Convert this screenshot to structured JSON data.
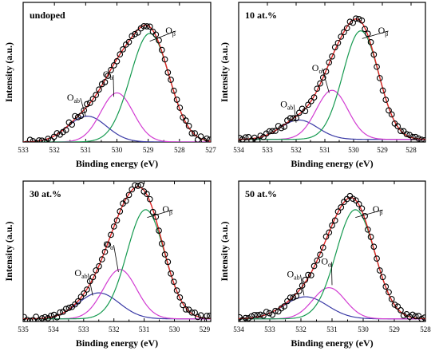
{
  "chart_data": [
    {
      "type": "line",
      "title": "undoped",
      "xlabel": "Binding energy (eV)",
      "ylabel": "Intensity (a.u.)",
      "xlim": [
        533,
        527
      ],
      "ylim": [
        0,
        1.08
      ],
      "xticks": [
        "533",
        "532",
        "531",
        "530",
        "529",
        "528",
        "527"
      ],
      "series": [
        {
          "name": "O_ab",
          "color": "#3a3aa6",
          "center": 530.95,
          "amplitude": 0.2,
          "sigma": 0.62
        },
        {
          "name": "O_α",
          "color": "#d23cd2",
          "center": 530.0,
          "amplitude": 0.38,
          "sigma": 0.52
        },
        {
          "name": "O_β",
          "color": "#169a50",
          "center": 528.95,
          "amplitude": 0.84,
          "sigma": 0.62
        }
      ],
      "fit": {
        "color": "#e02525"
      },
      "annotations": [
        {
          "main": "O",
          "sub": "ab",
          "energy": 531.6,
          "level": 0.32,
          "energy2": 531.0,
          "level2": 0.2
        },
        {
          "main": "O",
          "sub": "α",
          "energy": 530.45,
          "level": 0.5,
          "energy2": 530.1,
          "level2": 0.35
        },
        {
          "main": "O",
          "sub": "β",
          "energy": 528.45,
          "level": 0.84,
          "energy2": 528.95,
          "level2": 0.78
        }
      ],
      "background": 0.0
    },
    {
      "type": "line",
      "title": "10 at.%",
      "xlabel": "Binding energy (eV)",
      "ylabel": "Intensity (a.u.)",
      "xlim": [
        534,
        527.5
      ],
      "ylim": [
        0,
        1.08
      ],
      "xticks": [
        "534",
        "533",
        "532",
        "531",
        "530",
        "529",
        "528"
      ],
      "series": [
        {
          "name": "O_ab",
          "color": "#3a3aa6",
          "center": 531.9,
          "amplitude": 0.15,
          "sigma": 0.65
        },
        {
          "name": "O_α",
          "color": "#d23cd2",
          "center": 530.75,
          "amplitude": 0.38,
          "sigma": 0.55
        },
        {
          "name": "O_β",
          "color": "#169a50",
          "center": 529.75,
          "amplitude": 0.84,
          "sigma": 0.62
        }
      ],
      "fit": {
        "color": "#e02525"
      },
      "annotations": [
        {
          "main": "O",
          "sub": "ab",
          "energy": 532.55,
          "level": 0.27,
          "energy2": 532.0,
          "level2": 0.15
        },
        {
          "main": "O",
          "sub": "α",
          "energy": 531.45,
          "level": 0.55,
          "energy2": 530.85,
          "level2": 0.38
        },
        {
          "main": "O",
          "sub": "β",
          "energy": 529.15,
          "level": 0.84,
          "energy2": 529.7,
          "level2": 0.8
        }
      ],
      "background": 0.02
    },
    {
      "type": "line",
      "title": "30 at.%",
      "xlabel": "Binding energy (eV)",
      "ylabel": "Intensity (a.u.)",
      "xlim": [
        535,
        528.8
      ],
      "ylim": [
        0,
        1.08
      ],
      "xticks": [
        "535",
        "534",
        "533",
        "532",
        "531",
        "530",
        "529"
      ],
      "series": [
        {
          "name": "O_ab",
          "color": "#3a3aa6",
          "center": 532.5,
          "amplitude": 0.2,
          "sigma": 0.68
        },
        {
          "name": "O_α",
          "color": "#d23cd2",
          "center": 531.8,
          "amplitude": 0.38,
          "sigma": 0.55
        },
        {
          "name": "O_β",
          "color": "#169a50",
          "center": 530.95,
          "amplitude": 0.84,
          "sigma": 0.62
        }
      ],
      "fit": {
        "color": "#e02525"
      },
      "annotations": [
        {
          "main": "O",
          "sub": "ab",
          "energy": 533.3,
          "level": 0.35,
          "energy2": 532.7,
          "level2": 0.2
        },
        {
          "main": "O",
          "sub": "α",
          "energy": 532.35,
          "level": 0.57,
          "energy2": 531.85,
          "level2": 0.38
        },
        {
          "main": "O",
          "sub": "β",
          "energy": 530.4,
          "level": 0.84,
          "energy2": 530.9,
          "level2": 0.8
        }
      ],
      "background": 0.02
    },
    {
      "type": "line",
      "title": "50 at.%",
      "xlabel": "Binding energy (eV)",
      "ylabel": "Intensity (a.u.)",
      "xlim": [
        534,
        528
      ],
      "ylim": [
        0,
        1.08
      ],
      "xticks": [
        "534",
        "533",
        "532",
        "531",
        "530",
        "529",
        "528"
      ],
      "series": [
        {
          "name": "O_ab",
          "color": "#3a3aa6",
          "center": 531.85,
          "amplitude": 0.17,
          "sigma": 0.7
        },
        {
          "name": "O_α",
          "color": "#d23cd2",
          "center": 531.1,
          "amplitude": 0.24,
          "sigma": 0.52
        },
        {
          "name": "O_β",
          "color": "#169a50",
          "center": 530.25,
          "amplitude": 0.84,
          "sigma": 0.62
        }
      ],
      "fit": {
        "color": "#e02525"
      },
      "annotations": [
        {
          "main": "O",
          "sub": "ab",
          "energy": 532.45,
          "level": 0.34,
          "energy2": 531.9,
          "level2": 0.2
        },
        {
          "main": "O",
          "sub": "α",
          "energy": 531.35,
          "level": 0.44,
          "energy2": 531.0,
          "level2": 0.28
        },
        {
          "main": "O",
          "sub": "β",
          "energy": 529.7,
          "level": 0.84,
          "energy2": 530.25,
          "level2": 0.8
        }
      ],
      "background": 0.02
    }
  ]
}
